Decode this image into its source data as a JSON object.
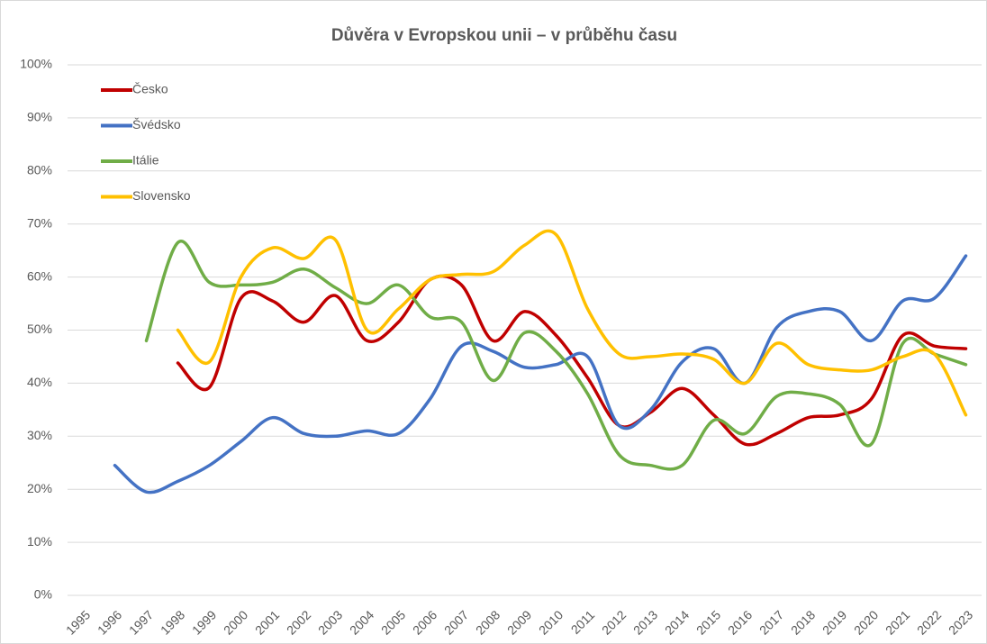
{
  "chart_data": {
    "type": "line",
    "title": "Důvěra v Evropskou unii – v průběhu času",
    "categories": [
      "1995",
      "1996",
      "1997",
      "1998",
      "1999",
      "2000",
      "2001",
      "2002",
      "2003",
      "2004",
      "2005",
      "2006",
      "2007",
      "2008",
      "2009",
      "2010",
      "2011",
      "2012",
      "2013",
      "2014",
      "2015",
      "2016",
      "2017",
      "2018",
      "2019",
      "2020",
      "2021",
      "2022",
      "2023"
    ],
    "series": [
      {
        "name": "Česko",
        "color": "#c00000",
        "values": [
          null,
          null,
          null,
          43.8,
          39.2,
          56,
          55.5,
          51.5,
          56.5,
          48,
          51.5,
          59.5,
          58.5,
          48,
          53.5,
          49,
          41,
          32,
          34.5,
          39,
          34,
          28.5,
          30.5,
          33.5,
          34,
          37,
          49,
          47,
          46.5
        ]
      },
      {
        "name": "Švédsko",
        "color": "#4472c4",
        "values": [
          null,
          24.5,
          19.5,
          21.5,
          24.5,
          29,
          33.5,
          30.5,
          30,
          31,
          30.5,
          37,
          47,
          46,
          43,
          43.5,
          45,
          32,
          35,
          44,
          46.5,
          40,
          50.5,
          53.5,
          53.5,
          48,
          55.5,
          56,
          64
        ]
      },
      {
        "name": "Itálie",
        "color": "#70ad47",
        "values": [
          null,
          null,
          48,
          66.5,
          59,
          58.5,
          59,
          61.5,
          58,
          55,
          58.5,
          52.5,
          51.5,
          40.5,
          49.5,
          46,
          38,
          26.5,
          24.5,
          24.5,
          33,
          30.5,
          37.5,
          38,
          36,
          28.5,
          47.5,
          45.5,
          43.5
        ]
      },
      {
        "name": "Slovensko",
        "color": "#ffc000",
        "values": [
          null,
          null,
          null,
          50,
          44,
          60,
          65.5,
          63.5,
          67,
          50,
          54,
          59.5,
          60.5,
          61,
          66,
          68,
          54,
          45.5,
          45,
          45.5,
          44.5,
          40,
          47.5,
          43.5,
          42.5,
          42.5,
          45,
          45.5,
          34
        ]
      }
    ],
    "ylim": [
      0,
      100
    ],
    "yticks": [
      {
        "value": 0,
        "label": "0%"
      },
      {
        "value": 10,
        "label": "10%"
      },
      {
        "value": 20,
        "label": "20%"
      },
      {
        "value": 30,
        "label": "30%"
      },
      {
        "value": 40,
        "label": "40%"
      },
      {
        "value": 50,
        "label": "50%"
      },
      {
        "value": 60,
        "label": "60%"
      },
      {
        "value": 70,
        "label": "70%"
      },
      {
        "value": 80,
        "label": "80%"
      },
      {
        "value": 90,
        "label": "90%"
      },
      {
        "value": 100,
        "label": "100%"
      }
    ],
    "grid": true,
    "legend": "top-left"
  }
}
